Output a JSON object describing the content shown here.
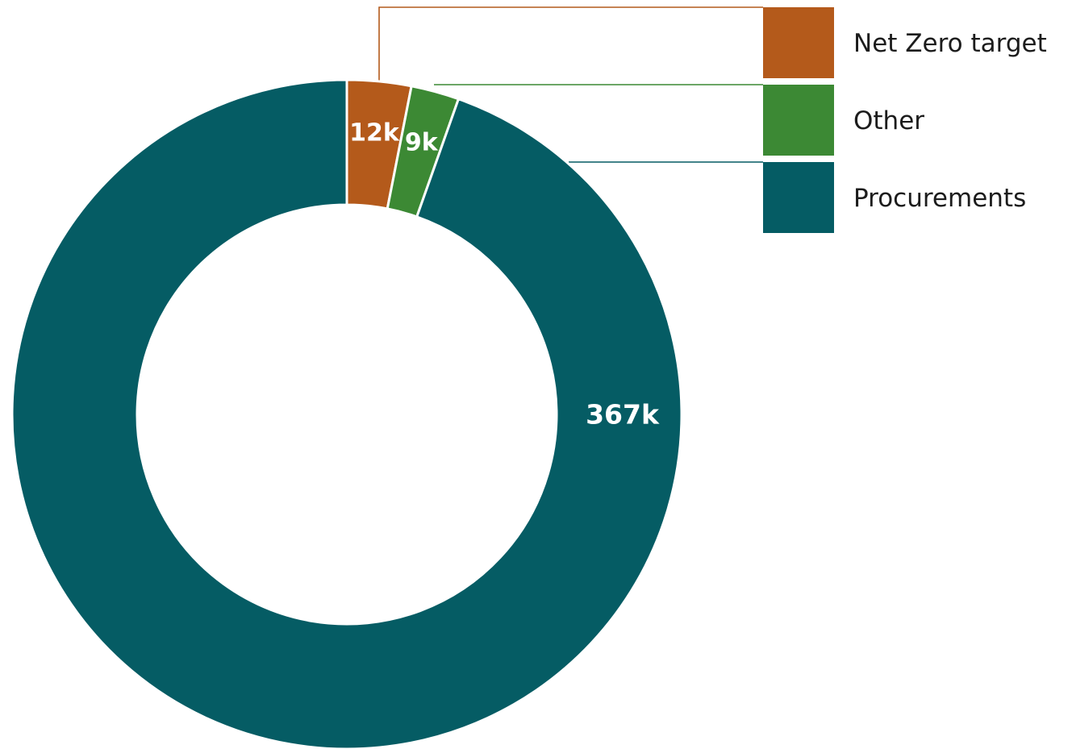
{
  "chart_data": {
    "type": "pie",
    "donut": true,
    "categories": [
      "Net Zero target",
      "Other",
      "Procurements"
    ],
    "values": [
      12,
      9,
      367
    ],
    "data_labels": [
      "12k",
      "9k",
      "367k"
    ],
    "colors": [
      "#b45a1b",
      "#3c8934",
      "#055c64"
    ],
    "legend": {
      "placement": "top-right",
      "entries": [
        "Net Zero target",
        "Other",
        "Procurements"
      ]
    },
    "start_angle": "top (12 o'clock)",
    "direction": "clockwise"
  }
}
